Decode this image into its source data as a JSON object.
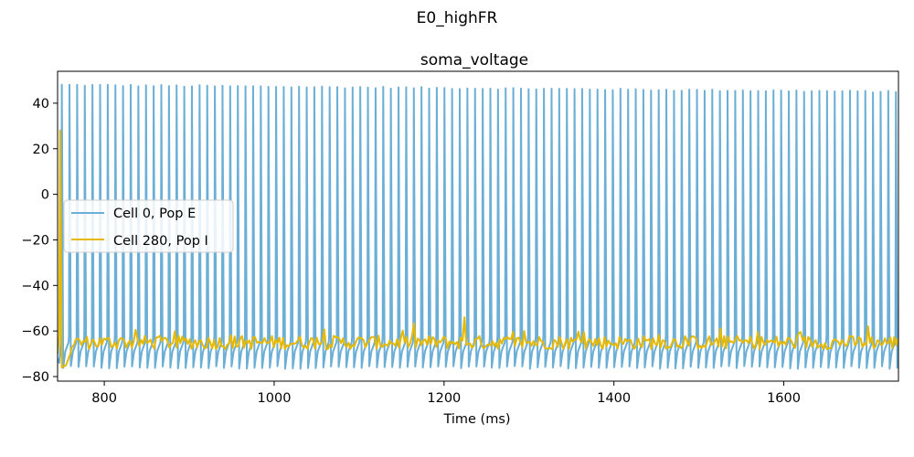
{
  "chart_data": {
    "type": "line",
    "suptitle": "E0_highFR",
    "title": "soma_voltage",
    "xlabel": "Time (ms)",
    "ylabel": "",
    "xlim": [
      745,
      1735
    ],
    "ylim": [
      -82,
      54
    ],
    "x_ticks": [
      800,
      1000,
      1200,
      1400,
      1600
    ],
    "y_ticks": [
      -80,
      -60,
      -40,
      -20,
      0,
      20,
      40
    ],
    "grid": false,
    "legend_position": "center-left",
    "series": [
      {
        "name": "Cell 0, Pop E",
        "color": "#6baed6",
        "model": "periodic-spiking",
        "spike_times_range_ms": [
          750,
          1732
        ],
        "spike_count": 110,
        "spike_peak_mV": [
          48,
          45
        ],
        "trough_mV": -76,
        "plateau_mV": -66
      },
      {
        "name": "Cell 280, Pop I",
        "color": "#e6b800",
        "model": "noisy-subthreshold",
        "initial_spike_time_ms": 748,
        "initial_spike_peak_mV": 28,
        "initial_trough_mV": -76,
        "mean_mV": -65,
        "noise_amplitude_mV": 3,
        "max_excursion_mV": -54,
        "max_excursion_time_ms": 1225
      }
    ]
  }
}
